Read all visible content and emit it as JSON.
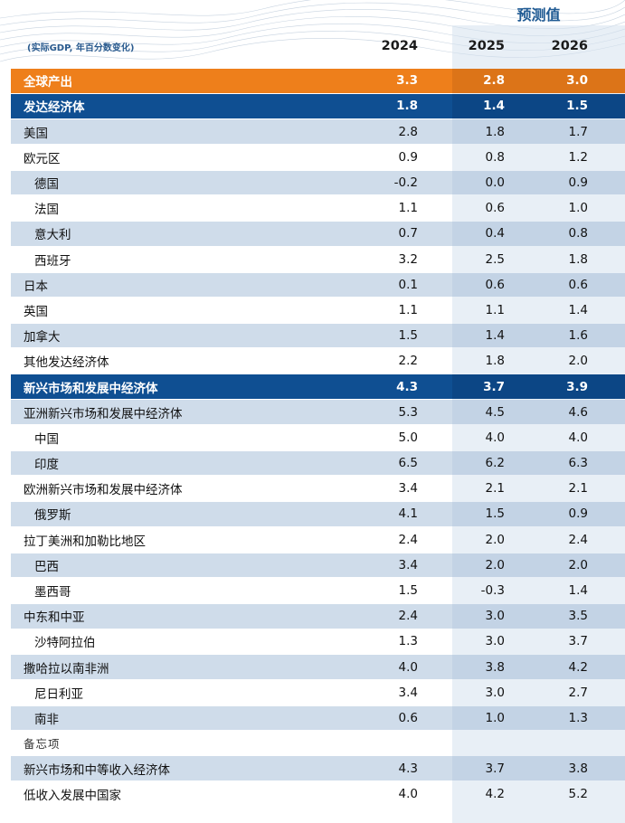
{
  "header": {
    "forecast_label": "预测值",
    "note": "(实际GDP, 年百分数变化)",
    "years": [
      "2024",
      "2025",
      "2026"
    ]
  },
  "rows": [
    {
      "label": "全球产出",
      "values": [
        "3.3",
        "2.8",
        "3.0"
      ],
      "style": "orange"
    },
    {
      "label": "发达经济体",
      "values": [
        "1.8",
        "1.4",
        "1.5"
      ],
      "style": "blue"
    },
    {
      "label": "美国",
      "values": [
        "2.8",
        "1.8",
        "1.7"
      ],
      "style": "shade"
    },
    {
      "label": "欧元区",
      "values": [
        "0.9",
        "0.8",
        "1.2"
      ],
      "style": "plain"
    },
    {
      "label": "德国",
      "values": [
        "-0.2",
        "0.0",
        "0.9"
      ],
      "style": "shade",
      "indent": true
    },
    {
      "label": "法国",
      "values": [
        "1.1",
        "0.6",
        "1.0"
      ],
      "style": "plain",
      "indent": true
    },
    {
      "label": "意大利",
      "values": [
        "0.7",
        "0.4",
        "0.8"
      ],
      "style": "shade",
      "indent": true
    },
    {
      "label": "西班牙",
      "values": [
        "3.2",
        "2.5",
        "1.8"
      ],
      "style": "plain",
      "indent": true
    },
    {
      "label": "日本",
      "values": [
        "0.1",
        "0.6",
        "0.6"
      ],
      "style": "shade"
    },
    {
      "label": "英国",
      "values": [
        "1.1",
        "1.1",
        "1.4"
      ],
      "style": "plain"
    },
    {
      "label": "加拿大",
      "values": [
        "1.5",
        "1.4",
        "1.6"
      ],
      "style": "shade"
    },
    {
      "label": "其他发达经济体",
      "values": [
        "2.2",
        "1.8",
        "2.0"
      ],
      "style": "plain"
    },
    {
      "label": "新兴市场和发展中经济体",
      "values": [
        "4.3",
        "3.7",
        "3.9"
      ],
      "style": "blue"
    },
    {
      "label": "亚洲新兴市场和发展中经济体",
      "values": [
        "5.3",
        "4.5",
        "4.6"
      ],
      "style": "shade"
    },
    {
      "label": "中国",
      "values": [
        "5.0",
        "4.0",
        "4.0"
      ],
      "style": "plain",
      "indent": true
    },
    {
      "label": "印度",
      "values": [
        "6.5",
        "6.2",
        "6.3"
      ],
      "style": "shade",
      "indent": true
    },
    {
      "label": "欧洲新兴市场和发展中经济体",
      "values": [
        "3.4",
        "2.1",
        "2.1"
      ],
      "style": "plain"
    },
    {
      "label": "俄罗斯",
      "values": [
        "4.1",
        "1.5",
        "0.9"
      ],
      "style": "shade",
      "indent": true
    },
    {
      "label": "拉丁美洲和加勒比地区",
      "values": [
        "2.4",
        "2.0",
        "2.4"
      ],
      "style": "plain"
    },
    {
      "label": "巴西",
      "values": [
        "3.4",
        "2.0",
        "2.0"
      ],
      "style": "shade",
      "indent": true
    },
    {
      "label": "墨西哥",
      "values": [
        "1.5",
        "-0.3",
        "1.4"
      ],
      "style": "plain",
      "indent": true
    },
    {
      "label": "中东和中亚",
      "values": [
        "2.4",
        "3.0",
        "3.5"
      ],
      "style": "shade"
    },
    {
      "label": "沙特阿拉伯",
      "values": [
        "1.3",
        "3.0",
        "3.7"
      ],
      "style": "plain",
      "indent": true
    },
    {
      "label": "撒哈拉以南非洲",
      "values": [
        "4.0",
        "3.8",
        "4.2"
      ],
      "style": "shade"
    },
    {
      "label": "尼日利亚",
      "values": [
        "3.4",
        "3.0",
        "2.7"
      ],
      "style": "plain",
      "indent": true
    },
    {
      "label": "南非",
      "values": [
        "0.6",
        "1.0",
        "1.3"
      ],
      "style": "shade",
      "indent": true
    },
    {
      "label": "备忘项",
      "values": [
        "",
        "",
        ""
      ],
      "style": "memo"
    },
    {
      "label": "新兴市场和中等收入经济体",
      "values": [
        "4.3",
        "3.7",
        "3.8"
      ],
      "style": "shade"
    },
    {
      "label": "低收入发展中国家",
      "values": [
        "4.0",
        "4.2",
        "5.2"
      ],
      "style": "plain"
    }
  ]
}
